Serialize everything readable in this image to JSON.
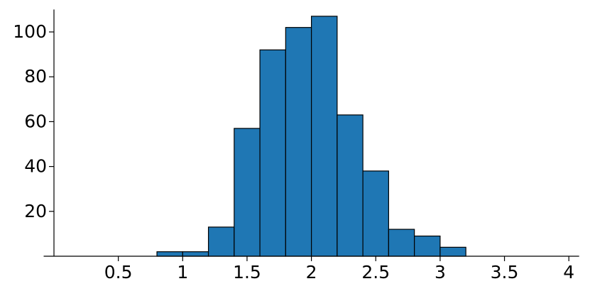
{
  "chart_data": {
    "type": "histogram",
    "bins": [
      0.8,
      1.0,
      1.2,
      1.4,
      1.6,
      1.8,
      2.0,
      2.2,
      2.4,
      2.6,
      2.8,
      3.0,
      3.2
    ],
    "values": [
      2,
      2,
      13,
      57,
      92,
      102,
      107,
      63,
      38,
      12,
      9,
      4
    ],
    "color": "#1f77b4",
    "xlim": [
      -0.08,
      4.08
    ],
    "xticks": [
      0.5,
      1,
      1.5,
      2,
      2.5,
      3,
      3.5,
      4
    ],
    "ylim": [
      0,
      110
    ],
    "yticks": [
      20,
      40,
      60,
      80,
      100
    ],
    "grid": false
  }
}
